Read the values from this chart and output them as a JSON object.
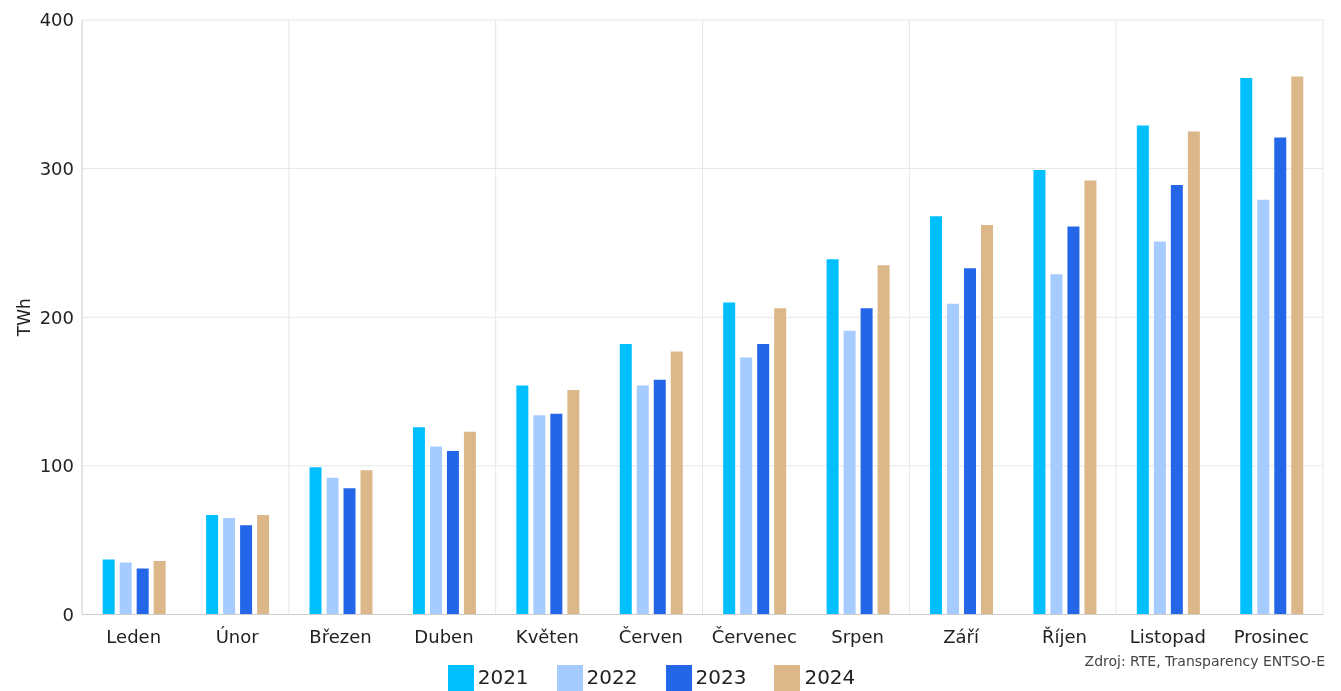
{
  "chart_data": {
    "type": "bar",
    "ylabel": "TWh",
    "categories": [
      "Leden",
      "Únor",
      "Březen",
      "Duben",
      "Květen",
      "Červen",
      "Červenec",
      "Srpen",
      "Září",
      "Říjen",
      "Listopad",
      "Prosinec"
    ],
    "series": [
      {
        "name": "2021",
        "color": "#00bfff",
        "values": [
          37,
          67,
          99,
          126,
          154,
          182,
          210,
          239,
          268,
          299,
          329,
          361
        ]
      },
      {
        "name": "2022",
        "color": "#a6cbfe",
        "values": [
          35,
          65,
          92,
          113,
          134,
          154,
          173,
          191,
          209,
          229,
          251,
          279
        ]
      },
      {
        "name": "2023",
        "color": "#2466e8",
        "values": [
          31,
          60,
          85,
          110,
          135,
          158,
          182,
          206,
          233,
          261,
          289,
          321
        ]
      },
      {
        "name": "2024",
        "color": "#dcb78a",
        "values": [
          36,
          67,
          97,
          123,
          151,
          177,
          206,
          235,
          262,
          292,
          325,
          362
        ]
      }
    ],
    "ylim": [
      0,
      400
    ],
    "yticks": [
      0,
      100,
      200,
      300,
      400
    ],
    "grid": true,
    "legend": "bottom",
    "annotations": [
      "Zdroj: RTE, Transparency ENTSO-E"
    ]
  }
}
